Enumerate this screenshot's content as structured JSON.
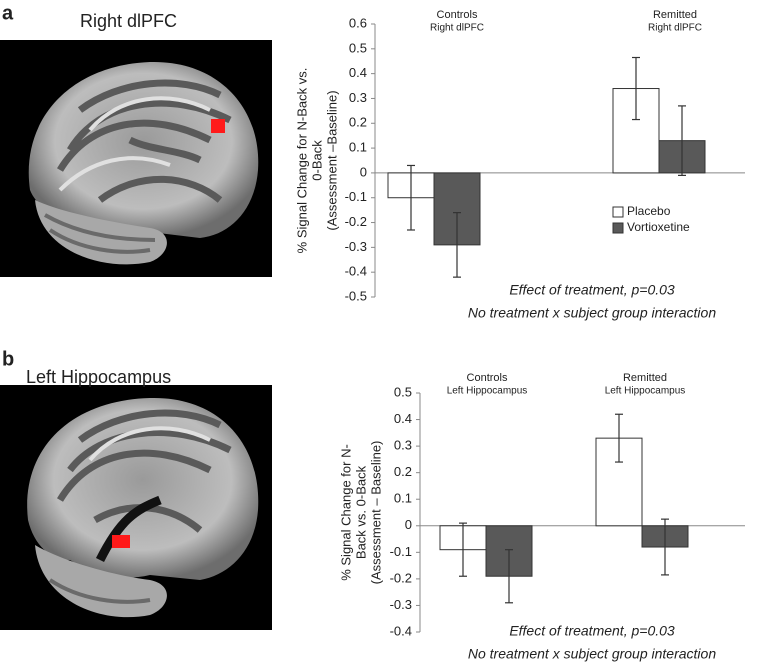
{
  "chart_data": [
    {
      "type": "bar",
      "panel": "a",
      "image_title": "Right dlPFC",
      "ylabel": [
        "% Signal Change for N-Back vs.",
        "0-Back",
        "(Assessment –Baseline)"
      ],
      "categories": [
        "Controls",
        "Remitted"
      ],
      "subcategories": [
        "Right dlPFC",
        "Right dlPFC"
      ],
      "series": [
        {
          "name": "Placebo",
          "color": "#ffffff",
          "values": [
            -0.1,
            0.34
          ],
          "errors": [
            0.13,
            0.125
          ]
        },
        {
          "name": "Vortioxetine",
          "color": "#595959",
          "values": [
            -0.29,
            0.13
          ],
          "errors": [
            0.13,
            0.14
          ]
        }
      ],
      "ylim": [
        -0.5,
        0.6
      ],
      "yticks": [
        -0.5,
        -0.4,
        -0.3,
        -0.2,
        -0.1,
        0,
        0.1,
        0.2,
        0.3,
        0.4,
        0.5,
        0.6
      ],
      "legend": "lower right",
      "annotations": [
        "Effect of treatment, p=0.03",
        "No treatment x subject group interaction"
      ]
    },
    {
      "type": "bar",
      "panel": "b",
      "image_title": "Left Hippocampus",
      "ylabel": [
        "% Signal Change for N-",
        "Back vs. 0-Back",
        "(Assessment – Baseline)"
      ],
      "categories": [
        "Controls",
        "Remitted"
      ],
      "subcategories": [
        "Left Hippocampus",
        "Left Hippocampus"
      ],
      "series": [
        {
          "color": "#ffffff",
          "values": [
            -0.09,
            0.33
          ],
          "errors": [
            0.1,
            0.09
          ]
        },
        {
          "color": "#595959",
          "values": [
            -0.19,
            -0.08
          ],
          "errors": [
            0.1,
            0.105
          ]
        }
      ],
      "ylim": [
        -0.4,
        0.5
      ],
      "yticks": [
        -0.4,
        -0.3,
        -0.2,
        -0.1,
        0,
        0.1,
        0.2,
        0.3,
        0.4,
        0.5
      ],
      "annotations": [
        "Effect of treatment, p=0.03",
        "No treatment x subject group interaction"
      ]
    }
  ]
}
